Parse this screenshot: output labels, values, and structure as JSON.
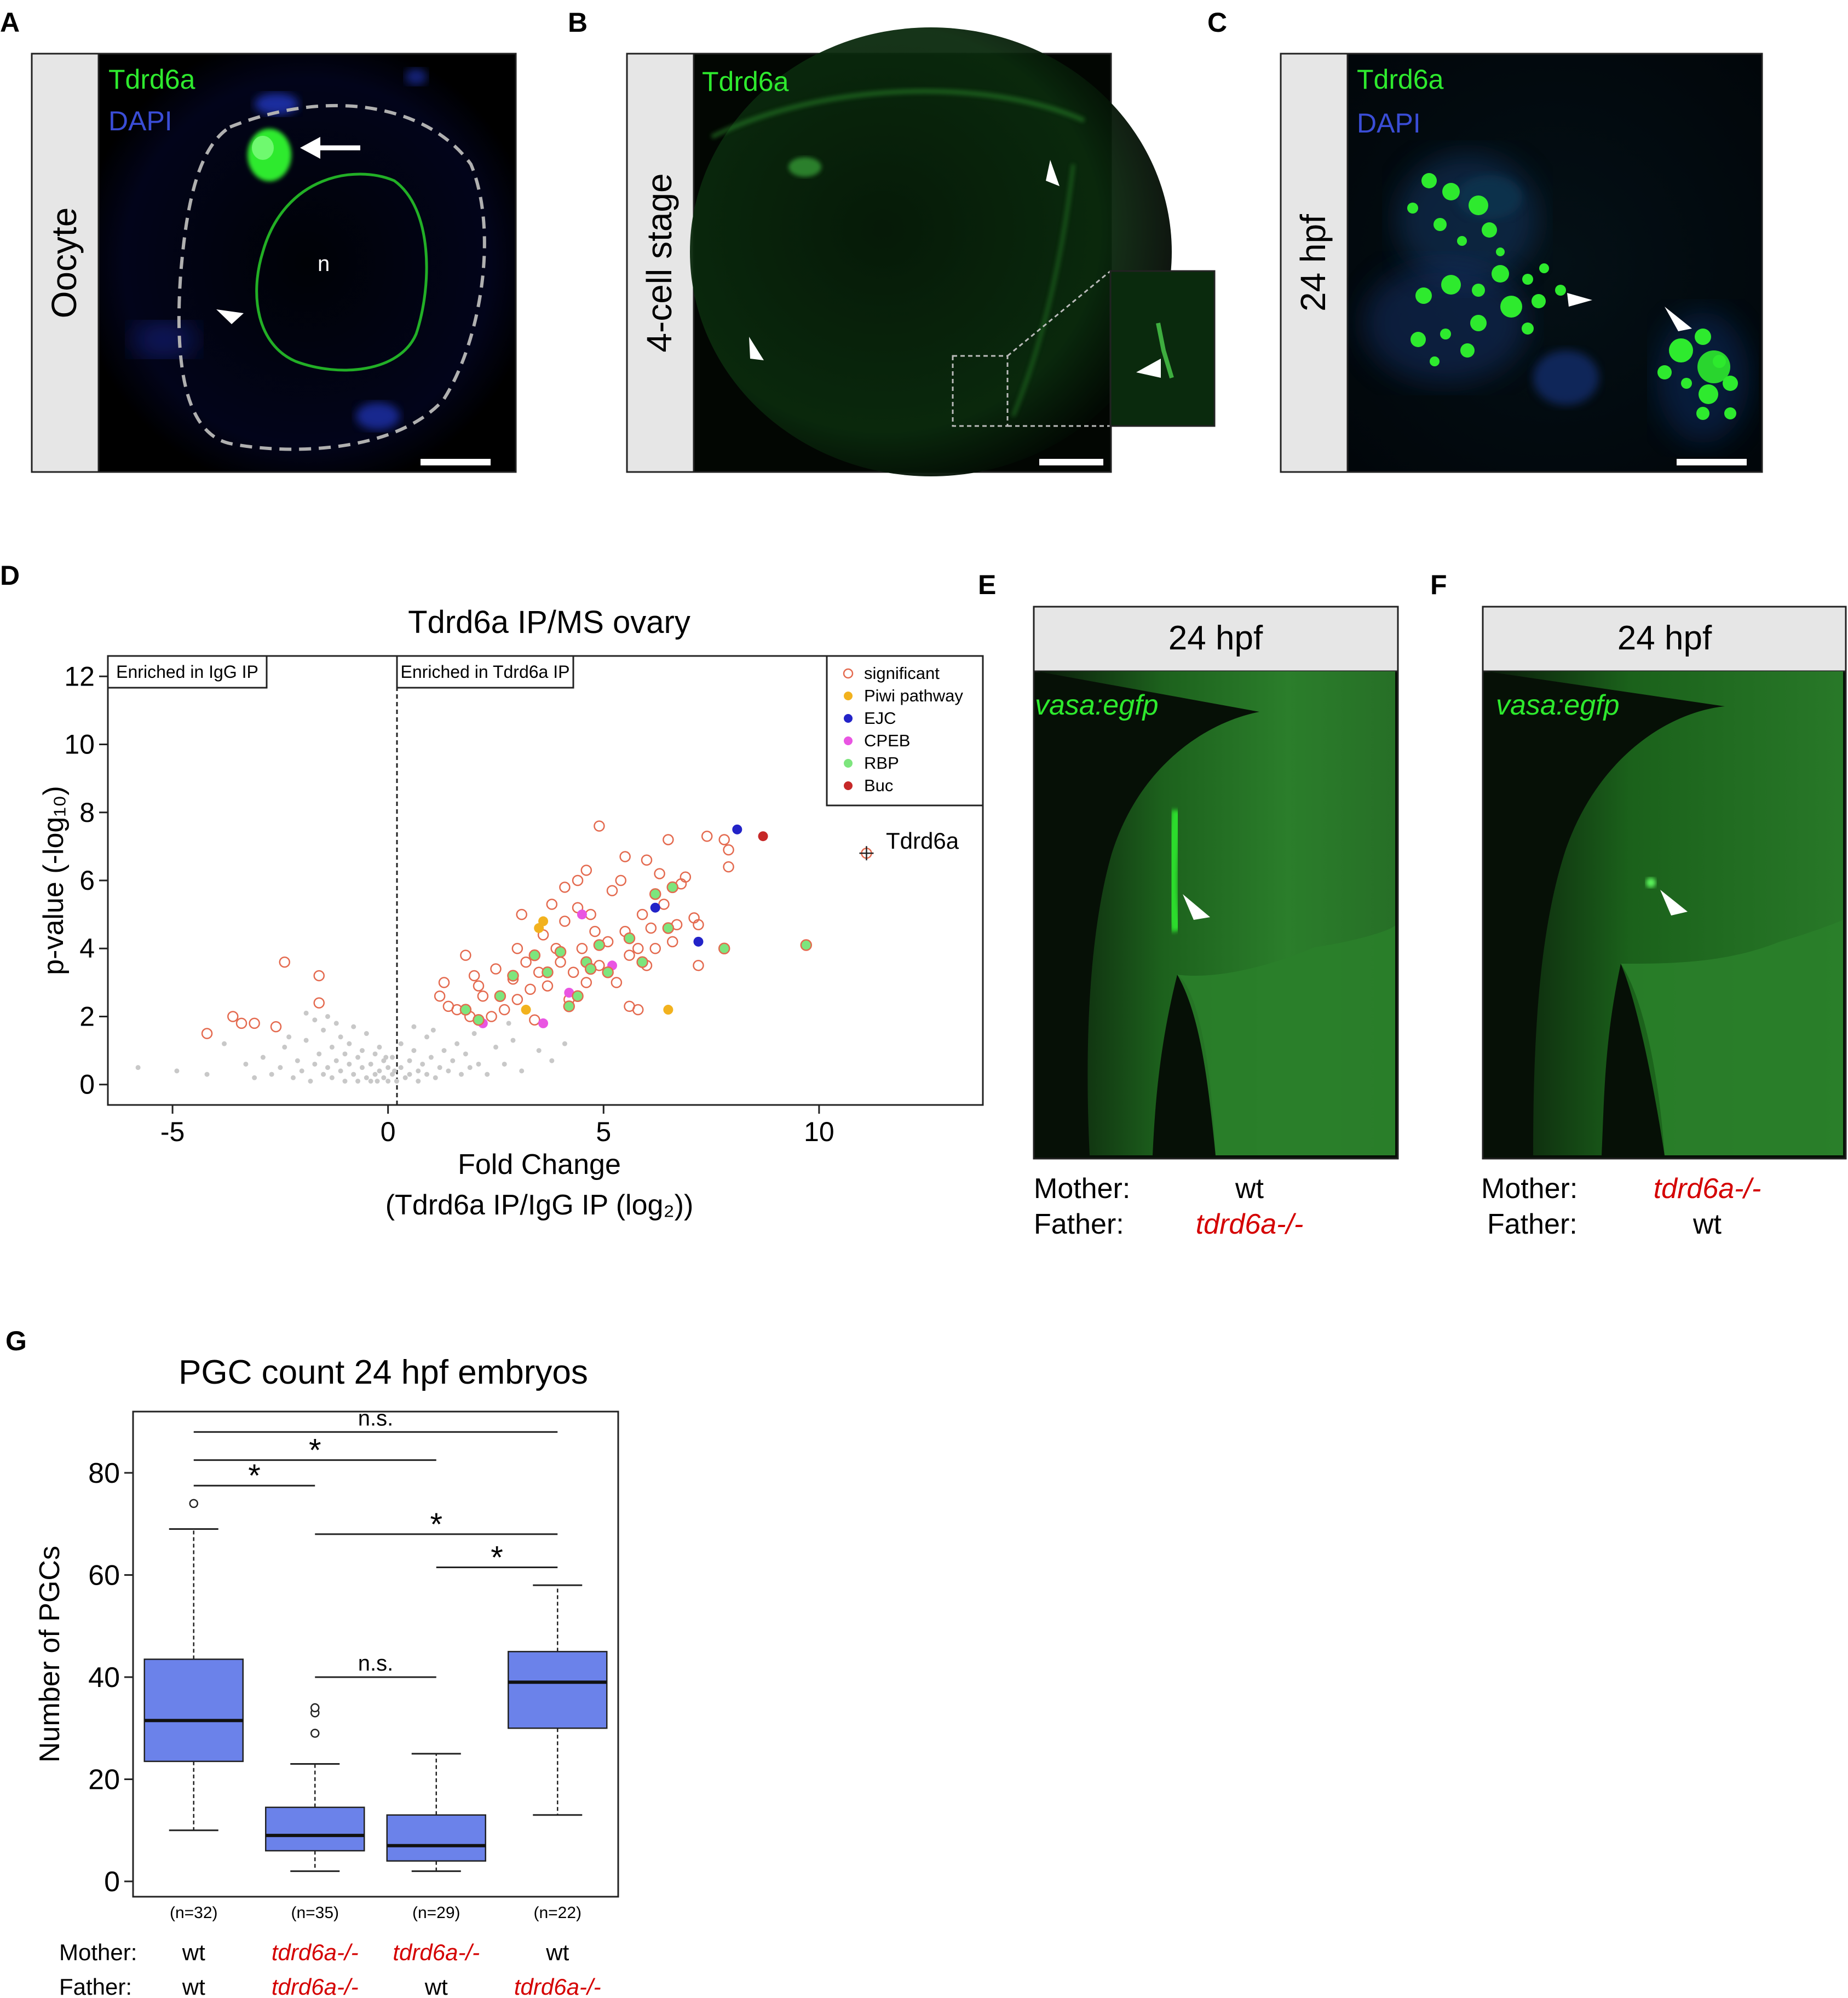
{
  "panels": {
    "A": {
      "letter": "A",
      "side_label": "Oocyte",
      "stain1": "Tdrd6a",
      "stain2": "DAPI",
      "nucleus_label": "n"
    },
    "B": {
      "letter": "B",
      "side_label": "4-cell stage",
      "stain1": "Tdrd6a"
    },
    "C": {
      "letter": "C",
      "side_label": "24 hpf",
      "stain1": "Tdrd6a",
      "stain2": "DAPI"
    },
    "D": {
      "letter": "D"
    },
    "E": {
      "letter": "E",
      "header": "24 hpf",
      "reporter": "vasa:egfp",
      "mother_label": "Mother:",
      "father_label": "Father:",
      "mother_value": "wt",
      "father_value": "tdrd6a-/-"
    },
    "F": {
      "letter": "F",
      "header": "24 hpf",
      "reporter": "vasa:egfp",
      "mother_label": "Mother:",
      "father_label": "Father:",
      "mother_value": "tdrd6a-/-",
      "father_value": "wt"
    },
    "G": {
      "letter": "G"
    }
  },
  "colors": {
    "stain_green": "#2eea2e",
    "dapi_blue": "#3a4dd6",
    "mutant_red": "#d40000",
    "box_fill": "#6b82ea",
    "significant": "#e46a4f",
    "piwi": "#f2b21e",
    "ejc": "#2323c8",
    "cpeb": "#e955e2",
    "rbp": "#7de57d",
    "buc": "#c62828",
    "nonsig": "#c8c8c8"
  },
  "chart_data": [
    {
      "type": "scatter",
      "title": "Tdrd6a IP/MS ovary",
      "xlabel": "Fold Change",
      "xlabel2": "(Tdrd6a IP/IgG IP (log₂))",
      "ylabel": "p-value (-log₁₀)",
      "xlim": [
        -6.5,
        13.8
      ],
      "ylim": [
        -0.6,
        12.6
      ],
      "xticks": [
        -5,
        0,
        5,
        10
      ],
      "yticks": [
        0,
        2,
        4,
        6,
        8,
        10,
        12
      ],
      "xtick_labels": [
        "-5",
        "0",
        "5",
        "10"
      ],
      "ytick_labels": [
        "0",
        "2",
        "4",
        "6",
        "8",
        "10",
        "12"
      ],
      "threshold_x": 0,
      "region_left": "Enriched in IgG IP",
      "region_right": "Enriched in Tdrd6a IP",
      "legend_position": "top-right",
      "legend": [
        "significant",
        "Piwi pathway",
        "EJC",
        "CPEB",
        "RBP",
        "Buc"
      ],
      "annotation": {
        "label": "Tdrd6a",
        "x": 11.1,
        "y": 6.8
      },
      "series": [
        {
          "name": "significant",
          "style": "open",
          "points": [
            [
              -4.2,
              1.5
            ],
            [
              -3.6,
              2.0
            ],
            [
              -3.4,
              1.8
            ],
            [
              -3.1,
              1.8
            ],
            [
              -2.6,
              1.7
            ],
            [
              -2.4,
              3.6
            ],
            [
              -1.6,
              3.2
            ],
            [
              -1.6,
              2.4
            ],
            [
              1.2,
              2.6
            ],
            [
              1.4,
              2.3
            ],
            [
              1.3,
              3.0
            ],
            [
              1.6,
              2.2
            ],
            [
              1.8,
              3.8
            ],
            [
              1.9,
              2.0
            ],
            [
              2.0,
              3.2
            ],
            [
              2.1,
              2.9
            ],
            [
              2.2,
              2.6
            ],
            [
              2.4,
              2.0
            ],
            [
              2.5,
              3.4
            ],
            [
              2.7,
              2.2
            ],
            [
              2.9,
              3.1
            ],
            [
              3.0,
              2.5
            ],
            [
              3.0,
              4.0
            ],
            [
              3.1,
              5.0
            ],
            [
              3.2,
              3.6
            ],
            [
              3.3,
              2.8
            ],
            [
              3.4,
              1.9
            ],
            [
              3.5,
              3.3
            ],
            [
              3.6,
              4.4
            ],
            [
              3.7,
              2.9
            ],
            [
              3.8,
              5.3
            ],
            [
              3.9,
              4.0
            ],
            [
              4.0,
              3.6
            ],
            [
              4.1,
              4.8
            ],
            [
              4.1,
              5.8
            ],
            [
              4.2,
              2.5
            ],
            [
              4.3,
              3.3
            ],
            [
              4.4,
              5.2
            ],
            [
              4.4,
              6.0
            ],
            [
              4.5,
              4.0
            ],
            [
              4.6,
              3.0
            ],
            [
              4.6,
              6.3
            ],
            [
              4.7,
              5.0
            ],
            [
              4.8,
              4.5
            ],
            [
              4.9,
              3.5
            ],
            [
              4.9,
              7.6
            ],
            [
              5.1,
              4.2
            ],
            [
              5.2,
              5.7
            ],
            [
              5.3,
              3.0
            ],
            [
              5.4,
              6.0
            ],
            [
              5.5,
              4.5
            ],
            [
              5.5,
              6.7
            ],
            [
              5.6,
              3.8
            ],
            [
              5.6,
              2.3
            ],
            [
              5.8,
              4.0
            ],
            [
              5.8,
              2.2
            ],
            [
              5.9,
              5.0
            ],
            [
              6.0,
              3.5
            ],
            [
              6.0,
              6.6
            ],
            [
              6.1,
              4.6
            ],
            [
              6.2,
              4.0
            ],
            [
              6.3,
              6.2
            ],
            [
              6.4,
              5.3
            ],
            [
              6.5,
              7.2
            ],
            [
              6.6,
              4.2
            ],
            [
              6.7,
              4.7
            ],
            [
              6.8,
              5.9
            ],
            [
              6.9,
              6.1
            ],
            [
              7.1,
              4.9
            ],
            [
              7.2,
              4.7
            ],
            [
              7.4,
              7.3
            ],
            [
              7.8,
              7.2
            ],
            [
              7.9,
              6.9
            ],
            [
              7.9,
              6.4
            ],
            [
              7.8,
              4.0
            ],
            [
              7.2,
              3.5
            ]
          ]
        },
        {
          "name": "Piwi pathway",
          "style": "filled",
          "points": [
            [
              3.5,
              4.6
            ],
            [
              3.6,
              4.8
            ],
            [
              3.2,
              2.2
            ],
            [
              6.5,
              2.2
            ]
          ]
        },
        {
          "name": "EJC",
          "style": "filled",
          "points": [
            [
              8.1,
              7.5
            ],
            [
              6.2,
              5.2
            ],
            [
              7.2,
              4.2
            ]
          ]
        },
        {
          "name": "CPEB",
          "style": "filled",
          "points": [
            [
              4.5,
              5.0
            ],
            [
              4.2,
              2.7
            ],
            [
              5.2,
              3.5
            ],
            [
              3.6,
              1.8
            ],
            [
              2.2,
              1.8
            ]
          ]
        },
        {
          "name": "RBP",
          "style": "filled",
          "points": [
            [
              1.8,
              2.2
            ],
            [
              2.1,
              1.9
            ],
            [
              2.6,
              2.6
            ],
            [
              2.9,
              3.2
            ],
            [
              3.4,
              3.8
            ],
            [
              3.7,
              3.3
            ],
            [
              4.0,
              3.9
            ],
            [
              4.2,
              2.3
            ],
            [
              4.4,
              2.6
            ],
            [
              4.6,
              3.6
            ],
            [
              4.7,
              3.4
            ],
            [
              4.9,
              4.1
            ],
            [
              5.1,
              3.3
            ],
            [
              5.6,
              4.3
            ],
            [
              5.9,
              3.6
            ],
            [
              6.2,
              5.6
            ],
            [
              6.5,
              4.6
            ],
            [
              6.6,
              5.8
            ],
            [
              7.8,
              4.0
            ],
            [
              9.7,
              4.1
            ]
          ]
        },
        {
          "name": "Buc",
          "style": "filled",
          "points": [
            [
              8.7,
              7.3
            ]
          ]
        },
        {
          "name": "Tdrd6a",
          "style": "cross",
          "points": [
            [
              11.1,
              6.8
            ]
          ]
        },
        {
          "name": "non-significant",
          "style": "small",
          "points": [
            [
              -5.8,
              0.5
            ],
            [
              -4.9,
              0.4
            ],
            [
              -4.2,
              0.3
            ],
            [
              -3.8,
              1.2
            ],
            [
              -3.3,
              0.6
            ],
            [
              -3.1,
              0.2
            ],
            [
              -2.9,
              0.8
            ],
            [
              -2.7,
              0.3
            ],
            [
              -2.5,
              0.5
            ],
            [
              -2.4,
              1.1
            ],
            [
              -2.2,
              0.2
            ],
            [
              -2.1,
              0.7
            ],
            [
              -2.0,
              0.4
            ],
            [
              -1.9,
              1.3
            ],
            [
              -1.8,
              0.1
            ],
            [
              -1.7,
              0.6
            ],
            [
              -1.6,
              0.9
            ],
            [
              -1.5,
              0.3
            ],
            [
              -1.5,
              1.6
            ],
            [
              -1.4,
              2.0
            ],
            [
              -1.4,
              0.5
            ],
            [
              -1.3,
              1.1
            ],
            [
              -1.3,
              0.2
            ],
            [
              -1.2,
              0.7
            ],
            [
              -1.2,
              1.8
            ],
            [
              -1.1,
              0.4
            ],
            [
              -1.1,
              1.4
            ],
            [
              -1.0,
              0.9
            ],
            [
              -1.0,
              0.1
            ],
            [
              -0.9,
              0.6
            ],
            [
              -0.9,
              1.2
            ],
            [
              -0.8,
              0.3
            ],
            [
              -0.8,
              1.7
            ],
            [
              -0.7,
              0.8
            ],
            [
              -0.7,
              0.1
            ],
            [
              -0.6,
              0.5
            ],
            [
              -0.6,
              1.0
            ],
            [
              -0.5,
              0.2
            ],
            [
              -0.5,
              1.5
            ],
            [
              -0.4,
              0.6
            ],
            [
              -0.4,
              0.1
            ],
            [
              -0.3,
              0.9
            ],
            [
              -0.3,
              0.3
            ],
            [
              -0.2,
              0.4
            ],
            [
              -0.2,
              1.1
            ],
            [
              -0.1,
              0.2
            ],
            [
              -0.1,
              0.7
            ],
            [
              0.1,
              0.3
            ],
            [
              0.1,
              0.8
            ],
            [
              0.2,
              0.1
            ],
            [
              0.3,
              0.5
            ],
            [
              0.3,
              1.2
            ],
            [
              0.4,
              0.2
            ],
            [
              0.5,
              0.7
            ],
            [
              0.5,
              0.3
            ],
            [
              0.6,
              1.0
            ],
            [
              0.7,
              0.4
            ],
            [
              0.7,
              0.1
            ],
            [
              0.8,
              0.6
            ],
            [
              0.9,
              1.4
            ],
            [
              0.9,
              0.3
            ],
            [
              1.0,
              0.8
            ],
            [
              1.1,
              0.2
            ],
            [
              1.2,
              0.5
            ],
            [
              1.3,
              1.0
            ],
            [
              1.4,
              0.4
            ],
            [
              1.5,
              0.7
            ],
            [
              1.6,
              1.2
            ],
            [
              1.7,
              0.3
            ],
            [
              1.8,
              0.9
            ],
            [
              1.9,
              0.5
            ],
            [
              2.0,
              1.5
            ],
            [
              2.1,
              0.6
            ],
            [
              2.3,
              0.3
            ],
            [
              2.5,
              1.1
            ],
            [
              2.7,
              0.6
            ],
            [
              2.9,
              1.3
            ],
            [
              3.1,
              0.4
            ],
            [
              3.5,
              1.0
            ],
            [
              3.8,
              0.7
            ],
            [
              4.1,
              1.2
            ],
            [
              0.0,
              0.5
            ],
            [
              0.0,
              0.1
            ],
            [
              -0.05,
              0.8
            ],
            [
              0.15,
              0.4
            ],
            [
              -0.25,
              0.1
            ],
            [
              1.05,
              1.6
            ],
            [
              0.6,
              1.7
            ],
            [
              -1.7,
              1.9
            ],
            [
              -1.9,
              2.1
            ],
            [
              -2.3,
              1.4
            ],
            [
              2.8,
              1.8
            ]
          ]
        }
      ]
    },
    {
      "type": "box",
      "title": "PGC count 24 hpf embryos",
      "ylabel": "Number of PGCs",
      "ylim": [
        -3,
        92
      ],
      "yticks": [
        0,
        20,
        40,
        60,
        80
      ],
      "ytick_labels": [
        "0",
        "20",
        "40",
        "60",
        "80"
      ],
      "row_labels": {
        "mother": "Mother:",
        "father": "Father:"
      },
      "groups": [
        {
          "n": "(n=32)",
          "mother": "wt",
          "father": "wt",
          "mother_mutant": false,
          "father_mutant": false,
          "min": 10,
          "q1": 23.5,
          "median": 31.5,
          "q3": 43.5,
          "max": 69,
          "outliers": [
            74
          ]
        },
        {
          "n": "(n=35)",
          "mother": "tdrd6a-/-",
          "father": "tdrd6a-/-",
          "mother_mutant": true,
          "father_mutant": true,
          "min": 2,
          "q1": 6,
          "median": 9,
          "q3": 14.5,
          "max": 23,
          "outliers": [
            29,
            33,
            34
          ]
        },
        {
          "n": "(n=29)",
          "mother": "tdrd6a-/-",
          "father": "wt",
          "mother_mutant": true,
          "father_mutant": false,
          "min": 2,
          "q1": 4,
          "median": 7,
          "q3": 13,
          "max": 25,
          "outliers": []
        },
        {
          "n": "(n=22)",
          "mother": "wt",
          "father": "tdrd6a-/-",
          "mother_mutant": false,
          "father_mutant": true,
          "min": 13,
          "q1": 30,
          "median": 39,
          "q3": 45,
          "max": 58,
          "outliers": []
        }
      ],
      "comparisons": [
        {
          "a": 1,
          "b": 4,
          "label": "n.s.",
          "y": 88
        },
        {
          "a": 1,
          "b": 3,
          "label": "*",
          "y": 82.5
        },
        {
          "a": 1,
          "b": 2,
          "label": "*",
          "y": 77.5
        },
        {
          "a": 2,
          "b": 4,
          "label": "*",
          "y": 68
        },
        {
          "a": 3,
          "b": 4,
          "label": "*",
          "y": 61.5
        },
        {
          "a": 2,
          "b": 3,
          "label": "n.s.",
          "y": 40
        }
      ]
    }
  ]
}
